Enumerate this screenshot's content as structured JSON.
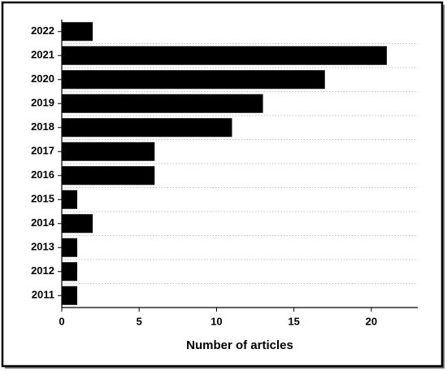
{
  "chart_data": {
    "type": "bar",
    "orientation": "horizontal",
    "x_label": "Number of articles",
    "categories": [
      "2022",
      "2021",
      "2020",
      "2019",
      "2018",
      "2017",
      "2016",
      "2015",
      "2014",
      "2013",
      "2012",
      "2011"
    ],
    "values": [
      2,
      21,
      17,
      13,
      11,
      6,
      6,
      1,
      2,
      1,
      1,
      1
    ],
    "color": "#000000",
    "xlim": [
      0,
      23
    ],
    "xticks": [
      0,
      5,
      10,
      15,
      20
    ],
    "grid": true
  }
}
